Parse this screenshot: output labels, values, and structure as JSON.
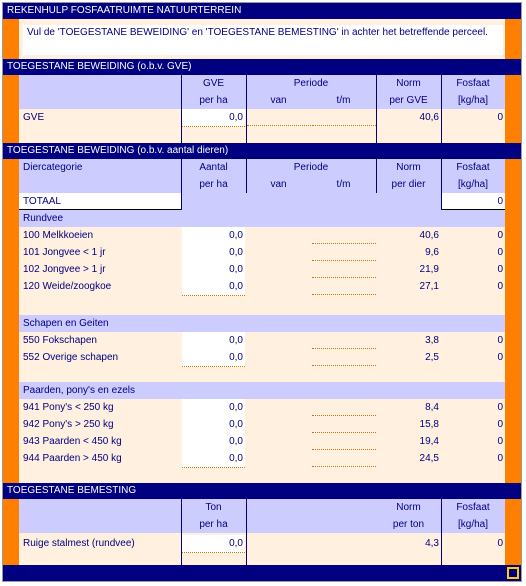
{
  "title": "REKENHULP FOSFAATRUIMTE NATUURTERREIN",
  "instruction": "Vul de 'TOEGESTANE BEWEIDING' en 'TOEGESTANE BEMESTING' in achter het betreffende perceel.",
  "section_gve": {
    "title": "TOEGESTANE BEWEIDING (o.b.v. GVE)",
    "col1_top": "GVE",
    "col1_bot": "per ha",
    "periode": "Periode",
    "van": "van",
    "tm": "t/m",
    "norm_top": "Norm",
    "norm_bot": "per GVE",
    "fosfaat_top": "Fosfaat",
    "fosfaat_bot": "[kg/ha]",
    "row": {
      "label": "GVE",
      "value": "0,0",
      "norm": "40,6",
      "fosfaat": "0"
    }
  },
  "section_dieren": {
    "title": "TOEGESTANE BEWEIDING (o.b.v. aantal dieren)",
    "col0": "Diercategorie",
    "col1_top": "Aantal",
    "col1_bot": "per ha",
    "periode": "Periode",
    "van": "van",
    "tm": "t/m",
    "norm_top": "Norm",
    "norm_bot": "per dier",
    "fosfaat_top": "Fosfaat",
    "fosfaat_bot": "[kg/ha]",
    "totaal_label": "TOTAAL",
    "totaal_value": "0",
    "groups": [
      {
        "name": "Rundvee",
        "rows": [
          {
            "label": "100 Melkkoeien",
            "value": "0,0",
            "norm": "40,6",
            "fosfaat": "0"
          },
          {
            "label": "101 Jongvee < 1 jr",
            "value": "0,0",
            "norm": "9,6",
            "fosfaat": "0"
          },
          {
            "label": "102 Jongvee > 1 jr",
            "value": "0,0",
            "norm": "21,9",
            "fosfaat": "0"
          },
          {
            "label": "120 Weide/zoogkoe",
            "value": "0,0",
            "norm": "27,1",
            "fosfaat": "0"
          }
        ]
      },
      {
        "name": "Schapen en Geiten",
        "rows": [
          {
            "label": "550 Fokschapen",
            "value": "0,0",
            "norm": "3,8",
            "fosfaat": "0"
          },
          {
            "label": "552 Overige schapen",
            "value": "0,0",
            "norm": "2,5",
            "fosfaat": "0"
          }
        ]
      },
      {
        "name": "Paarden, pony's en ezels",
        "rows": [
          {
            "label": "941 Pony's < 250 kg",
            "value": "0,0",
            "norm": "8,4",
            "fosfaat": "0"
          },
          {
            "label": "942 Pony's > 250 kg",
            "value": "0,0",
            "norm": "15,8",
            "fosfaat": "0"
          },
          {
            "label": "943 Paarden < 450 kg",
            "value": "0,0",
            "norm": "19,4",
            "fosfaat": "0"
          },
          {
            "label": "944 Paarden > 450 kg",
            "value": "0,0",
            "norm": "24,5",
            "fosfaat": "0"
          }
        ]
      }
    ]
  },
  "section_bemesting": {
    "title": "TOEGESTANE BEMESTING",
    "col1_top": "Ton",
    "col1_bot": "per ha",
    "norm_top": "Norm",
    "norm_bot": "per ton",
    "fosfaat_top": "Fosfaat",
    "fosfaat_bot": "[kg/ha]",
    "row": {
      "label": "Ruige stalmest (rundvee)",
      "value": "0,0",
      "norm": "4,3",
      "fosfaat": "0"
    }
  },
  "colors": {
    "navy": "#000080",
    "orange": "#ff8000",
    "header_blue": "#ccccff",
    "row_peach": "#fff0e0"
  }
}
